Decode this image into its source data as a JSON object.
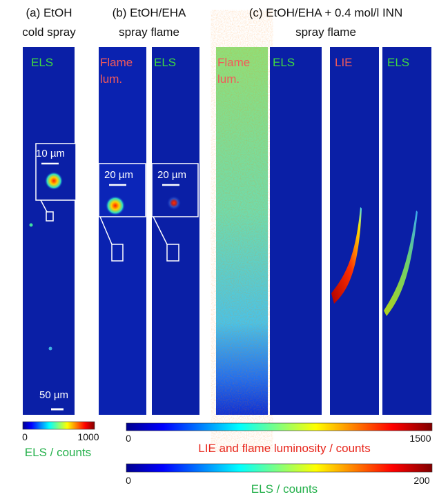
{
  "headers": [
    "(a) EtOH",
    "cold spray",
    "(b) EtOH/EHA",
    "spray flame",
    "(c) EtOH/EHA + 0.4 mol/l INN",
    "spray flame"
  ],
  "panel_labels": [
    {
      "lines": [
        "ELS"
      ]
    },
    {
      "lines": [
        "Flame",
        "lum."
      ]
    },
    {
      "lines": [
        "ELS"
      ]
    },
    {
      "lines": [
        "Flame",
        "lum."
      ]
    },
    {
      "lines": [
        "ELS"
      ]
    },
    {
      "lines": [
        "LIE"
      ]
    },
    {
      "lines": [
        "ELS"
      ]
    }
  ],
  "scale_bars": [
    "10 µm",
    "20 µm",
    "20 µm",
    "50 µm"
  ],
  "colorbars": [
    {
      "min": 0,
      "max": 1000,
      "label": "ELS / counts"
    },
    {
      "min": 0,
      "max": 1500,
      "label": "LIE and flame luminosity / counts"
    },
    {
      "min": 0,
      "max": 200,
      "label": "ELS / counts"
    }
  ]
}
